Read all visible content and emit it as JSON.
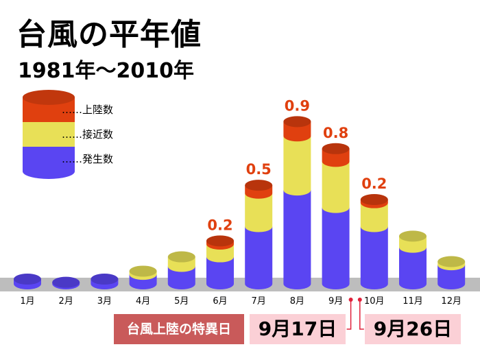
{
  "title": "台風の平年値",
  "subtitle": "1981年〜2010年",
  "legend": [
    {
      "dots": "……",
      "label": "上陸数",
      "color": "#e0400f"
    },
    {
      "dots": "……",
      "label": "接近数",
      "color": "#e8e057"
    },
    {
      "dots": "……",
      "label": "発生数",
      "color": "#5a45f2"
    }
  ],
  "special_days": {
    "label": "台風上陸の特異日",
    "dates": [
      "9月17日",
      "9月26日"
    ]
  },
  "colors": {
    "landfall": "#e0400f",
    "approach": "#e8e057",
    "formation": "#5a45f2",
    "ground": "#bdbdbd",
    "label_red": "#e0400f",
    "marker": "#e0203a"
  },
  "chart_data": {
    "type": "bar",
    "stacked": true,
    "categories": [
      "1月",
      "2月",
      "3月",
      "4月",
      "5月",
      "6月",
      "7月",
      "8月",
      "9月",
      "10月",
      "11月",
      "12月"
    ],
    "series": [
      {
        "name": "発生数",
        "values": [
          0.3,
          0.1,
          0.3,
          0.6,
          1.1,
          1.7,
          3.6,
          5.9,
          4.8,
          3.6,
          2.3,
          1.2
        ]
      },
      {
        "name": "接近数",
        "values": [
          0.0,
          0.0,
          0.0,
          0.2,
          0.6,
          0.8,
          2.1,
          3.4,
          2.9,
          1.5,
          0.7,
          0.2
        ]
      },
      {
        "name": "上陸数",
        "values": [
          0.0,
          0.0,
          0.0,
          0.0,
          0.0,
          0.2,
          0.5,
          0.9,
          0.8,
          0.2,
          0.0,
          0.0
        ]
      }
    ],
    "data_labels": [
      "",
      "",
      "",
      "",
      "",
      "0.2",
      "0.5",
      "0.9",
      "0.8",
      "0.2",
      "",
      ""
    ],
    "special_day_markers": [
      "9月",
      "10月"
    ]
  }
}
